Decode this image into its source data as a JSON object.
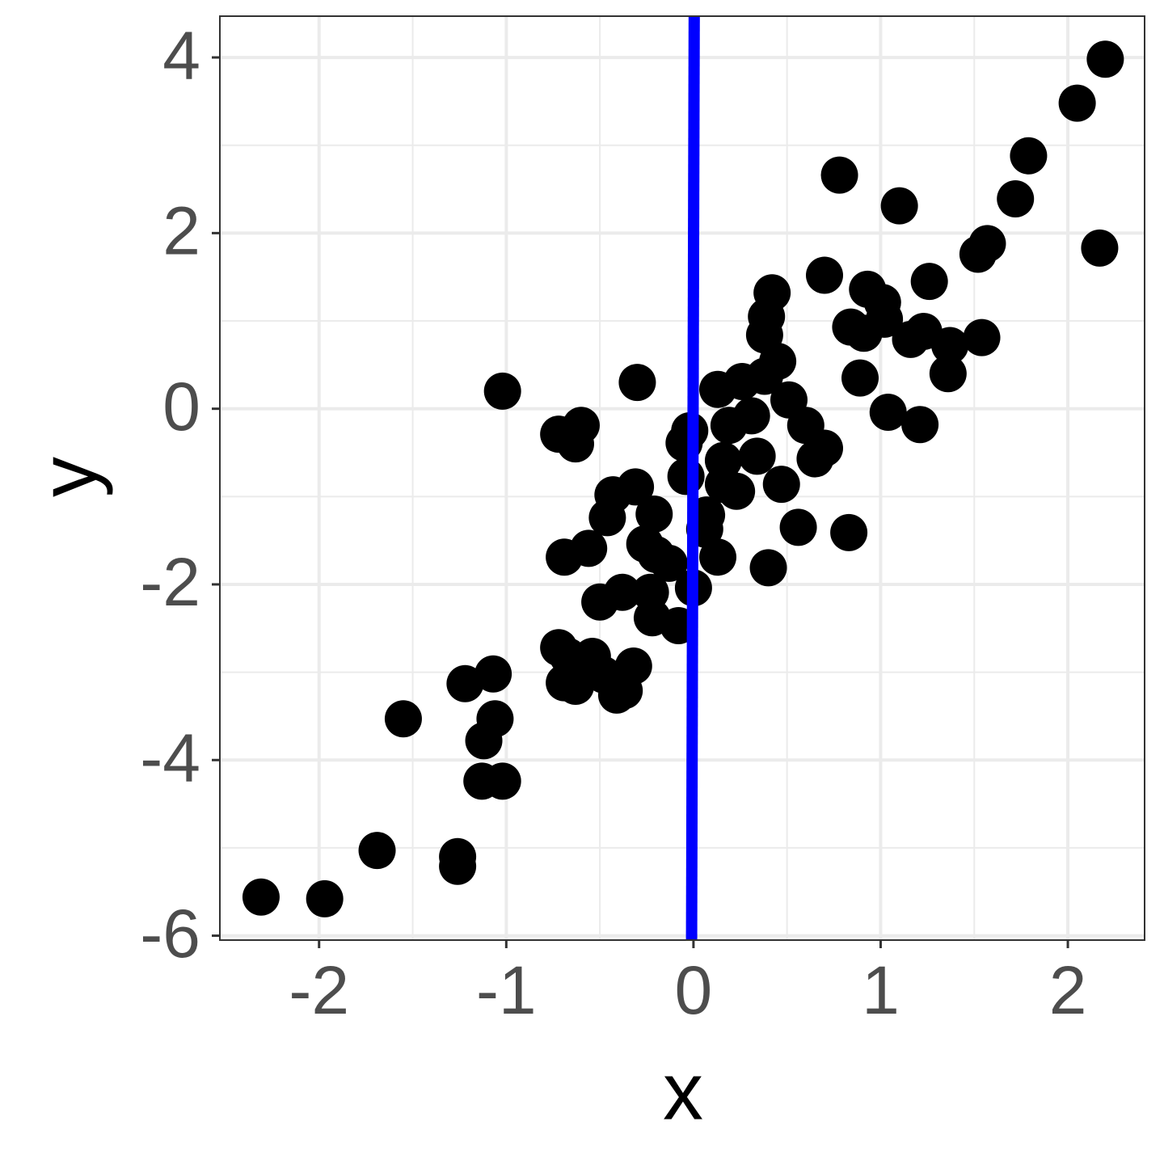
{
  "chart_data": {
    "type": "scatter",
    "x_label": "x",
    "y_label": "y",
    "xlim": [
      -2.53,
      2.41
    ],
    "ylim": [
      -6.05,
      4.47
    ],
    "xticks": [
      -2,
      -1,
      0,
      1,
      2
    ],
    "yticks": [
      -6,
      -4,
      -2,
      0,
      2,
      4
    ],
    "minor_xticks": [
      -1.5,
      -0.5,
      0.5,
      1.5
    ],
    "minor_yticks": [
      -5,
      -3,
      -1,
      1,
      3
    ],
    "grid": true,
    "point_color": "#000000",
    "x": [
      -2.31,
      -1.97,
      -1.69,
      -1.26,
      -1.26,
      -1.55,
      -1.22,
      -1.07,
      -1.12,
      -1.06,
      -1.13,
      -1.02,
      -1.02,
      -0.72,
      -0.63,
      -0.6,
      -0.69,
      -0.56,
      -0.72,
      -0.67,
      -0.69,
      -0.63,
      -0.54,
      -0.48,
      -0.41,
      -0.37,
      -0.32,
      -0.5,
      -0.38,
      -0.23,
      -0.22,
      -0.08,
      -0.43,
      -0.31,
      -0.46,
      -0.21,
      -0.26,
      -0.2,
      -0.13,
      -0.3,
      -0.05,
      -0.02,
      -0.04,
      0.0,
      0.06,
      0.07,
      0.13,
      0.13,
      0.26,
      0.38,
      0.19,
      0.31,
      0.34,
      0.16,
      0.23,
      0.16,
      0.4,
      0.47,
      0.56,
      0.42,
      0.39,
      0.38,
      0.45,
      0.51,
      0.6,
      0.7,
      0.65,
      0.7,
      0.78,
      0.83,
      0.84,
      0.91,
      0.89,
      0.93,
      1.01,
      1.02,
      1.1,
      1.04,
      1.16,
      1.23,
      1.26,
      1.21,
      1.37,
      1.36,
      1.54,
      1.52,
      1.57,
      1.72,
      1.79,
      2.05,
      2.2,
      2.17
    ],
    "y": [
      -5.56,
      -5.58,
      -5.03,
      -5.1,
      -5.21,
      -3.53,
      -3.13,
      -3.02,
      -3.78,
      -3.53,
      -4.24,
      -4.24,
      0.2,
      -0.29,
      -0.4,
      -0.19,
      -1.69,
      -1.59,
      -2.72,
      -2.82,
      -3.12,
      -3.16,
      -2.82,
      -3.03,
      -3.26,
      -3.21,
      -2.93,
      -2.2,
      -2.09,
      -2.09,
      -2.38,
      -2.47,
      -0.98,
      -0.89,
      -1.24,
      -1.2,
      -1.54,
      -1.66,
      -1.76,
      0.3,
      -0.39,
      -0.25,
      -0.77,
      -2.04,
      -1.37,
      -1.21,
      -1.69,
      0.22,
      0.31,
      0.37,
      -0.19,
      -0.08,
      -0.54,
      -0.59,
      -0.94,
      -0.86,
      -1.81,
      -0.86,
      -1.35,
      1.32,
      1.05,
      0.84,
      0.54,
      0.1,
      -0.19,
      -0.45,
      -0.57,
      1.52,
      2.66,
      -1.41,
      0.93,
      0.86,
      0.35,
      1.36,
      1.21,
      1.02,
      2.31,
      -0.04,
      0.79,
      0.88,
      1.45,
      -0.18,
      0.72,
      0.4,
      0.81,
      1.76,
      1.88,
      2.39,
      2.88,
      3.48,
      3.98,
      1.83
    ],
    "line": {
      "color": "#0000ff",
      "x": [
        -0.01,
        0.004
      ],
      "y": [
        -6.05,
        4.47
      ]
    }
  }
}
